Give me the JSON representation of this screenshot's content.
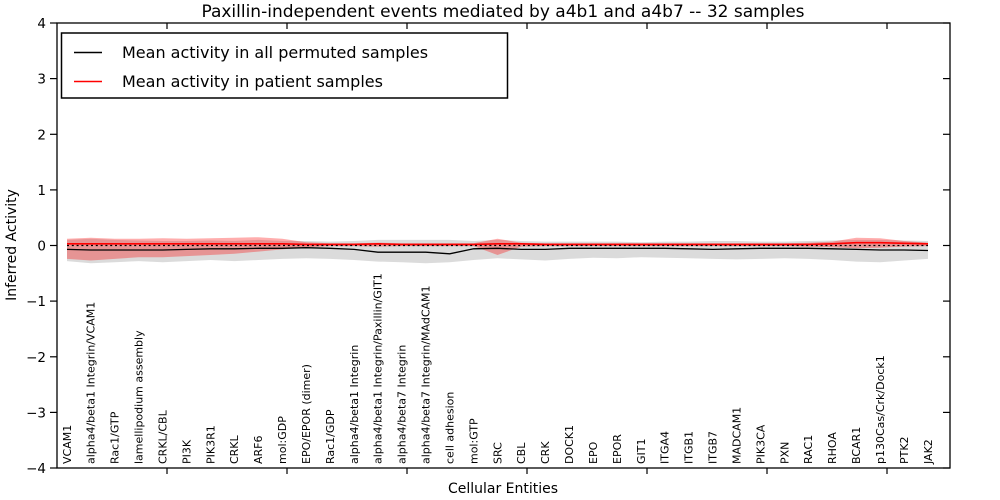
{
  "chart_data": {
    "type": "line",
    "title": "Paxillin-independent events mediated by a4b1 and a4b7 -- 32 samples",
    "xlabel": "Cellular Entities",
    "ylabel": "Inferred Activity",
    "ylim": [
      -4,
      4
    ],
    "yticks": [
      4,
      3,
      2,
      1,
      0,
      -1,
      -2,
      -3,
      -4
    ],
    "grid": false,
    "legend": {
      "position": "upper left",
      "entries": [
        {
          "label": "Mean activity in all permuted samples",
          "color": "#000000"
        },
        {
          "label": "Mean activity in patient samples",
          "color": "#ff0000"
        }
      ]
    },
    "baseline": {
      "value": 0,
      "style": "dotted",
      "color": "#000000"
    },
    "categories": [
      "VCAM1",
      "alpha4/beta1 Integrin/VCAM1",
      "Rac1/GTP",
      "lamellipodium assembly",
      "CRKL/CBL",
      "PI3K",
      "PIK3R1",
      "CRKL",
      "ARF6",
      "mol:GDP",
      "EPO/EPOR (dimer)",
      "Rac1/GDP",
      "alpha4/beta1 Integrin",
      "alpha4/beta1 Integrin/Paxillin/GIT1",
      "alpha4/beta7 Integrin",
      "alpha4/beta7 Integrin/MAdCAM1",
      "cell adhesion",
      "mol:GTP",
      "SRC",
      "CBL",
      "CRK",
      "DOCK1",
      "EPO",
      "EPOR",
      "GIT1",
      "ITGA4",
      "ITGB1",
      "ITGB7",
      "MADCAM1",
      "PIK3CA",
      "PXN",
      "RAC1",
      "RHOA",
      "BCAR1",
      "p130Cas/Crk/Dock1",
      "PTK2",
      "JAK2"
    ],
    "series": [
      {
        "name": "Mean activity in all permuted samples",
        "color": "#000000",
        "style": "solid",
        "values": [
          -0.07,
          -0.08,
          -0.08,
          -0.08,
          -0.08,
          -0.07,
          -0.06,
          -0.06,
          -0.05,
          -0.05,
          -0.04,
          -0.05,
          -0.07,
          -0.12,
          -0.12,
          -0.12,
          -0.15,
          -0.06,
          -0.05,
          -0.07,
          -0.07,
          -0.05,
          -0.05,
          -0.05,
          -0.05,
          -0.05,
          -0.06,
          -0.07,
          -0.06,
          -0.05,
          -0.05,
          -0.05,
          -0.06,
          -0.07,
          -0.08,
          -0.08,
          -0.09
        ]
      },
      {
        "name": "Mean activity in patient samples",
        "color": "#ff0000",
        "style": "solid",
        "values": [
          0.03,
          0.03,
          0.03,
          0.03,
          0.03,
          0.03,
          0.03,
          0.03,
          0.03,
          0.03,
          0.02,
          0.02,
          0.02,
          0.03,
          0.02,
          0.02,
          0.02,
          0.02,
          0.03,
          0.03,
          0.02,
          0.02,
          0.02,
          0.02,
          0.02,
          0.02,
          0.02,
          0.02,
          0.02,
          0.02,
          0.02,
          0.02,
          0.03,
          0.05,
          0.05,
          0.04,
          0.03
        ]
      }
    ],
    "bands": [
      {
        "name": "permuted-range",
        "color": "#999999",
        "opacity": 0.35,
        "low": [
          -0.28,
          -0.32,
          -0.3,
          -0.28,
          -0.3,
          -0.28,
          -0.26,
          -0.28,
          -0.26,
          -0.24,
          -0.23,
          -0.24,
          -0.26,
          -0.29,
          -0.3,
          -0.32,
          -0.3,
          -0.26,
          -0.23,
          -0.25,
          -0.27,
          -0.24,
          -0.22,
          -0.23,
          -0.21,
          -0.22,
          -0.23,
          -0.24,
          -0.25,
          -0.24,
          -0.23,
          -0.24,
          -0.26,
          -0.29,
          -0.3,
          -0.27,
          -0.24
        ],
        "high": [
          0.1,
          0.12,
          0.1,
          0.09,
          0.08,
          0.08,
          0.09,
          0.08,
          0.1,
          0.08,
          0.08,
          0.07,
          0.08,
          0.1,
          0.1,
          0.1,
          0.1,
          0.08,
          0.1,
          0.08,
          0.07,
          0.07,
          0.07,
          0.07,
          0.06,
          0.07,
          0.07,
          0.08,
          0.08,
          0.07,
          0.07,
          0.08,
          0.09,
          0.1,
          0.1,
          0.09,
          0.08
        ]
      },
      {
        "name": "patient-range",
        "color": "#ff0000",
        "opacity": 0.32,
        "low": [
          -0.24,
          -0.27,
          -0.24,
          -0.21,
          -0.21,
          -0.19,
          -0.17,
          -0.15,
          -0.11,
          -0.07,
          -0.03,
          -0.01,
          -0.01,
          -0.02,
          -0.01,
          -0.01,
          -0.01,
          -0.01,
          -0.17,
          -0.02,
          -0.01,
          -0.01,
          -0.01,
          -0.01,
          -0.01,
          -0.01,
          -0.01,
          -0.01,
          -0.01,
          -0.01,
          -0.01,
          -0.02,
          -0.03,
          -0.05,
          -0.04,
          -0.02,
          -0.01
        ],
        "high": [
          0.12,
          0.14,
          0.12,
          0.12,
          0.13,
          0.12,
          0.13,
          0.14,
          0.15,
          0.12,
          0.06,
          0.04,
          0.04,
          0.05,
          0.04,
          0.04,
          0.04,
          0.04,
          0.12,
          0.05,
          0.04,
          0.04,
          0.04,
          0.04,
          0.04,
          0.04,
          0.04,
          0.04,
          0.04,
          0.04,
          0.04,
          0.05,
          0.07,
          0.14,
          0.13,
          0.08,
          0.05
        ]
      }
    ]
  }
}
